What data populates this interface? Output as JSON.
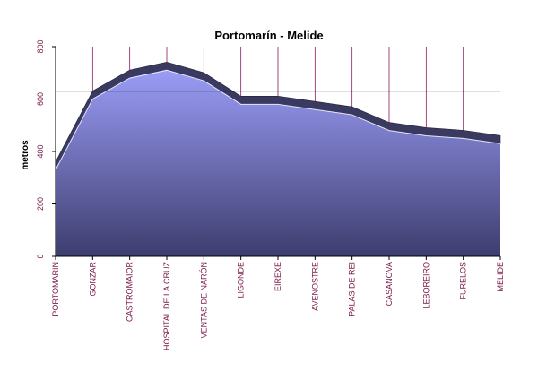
{
  "chart_data": {
    "type": "area",
    "title": "Portomarín - Melide",
    "xlabel": "",
    "ylabel": "metros",
    "ylim": [
      0,
      800
    ],
    "yticks": [
      "0",
      "200",
      "400",
      "600",
      "800"
    ],
    "categories": [
      "PORTOMARIN",
      "GONZAR",
      "CASTROMAIOR",
      "HOSPITAL DE LA CRUZ",
      "VENTAS DE NARÓN",
      "LIGONDE",
      "EIREXE",
      "AVENOSTRE",
      "PALAS DE REI",
      "CASANOVA",
      "LEBOREIRO",
      "FURELOS",
      "MELIDE"
    ],
    "values": [
      330,
      600,
      680,
      710,
      670,
      580,
      580,
      560,
      540,
      480,
      460,
      450,
      430
    ],
    "reference_line": 630,
    "grid": false,
    "legend": "none",
    "colors": {
      "fill_top": "#9a9cf6",
      "fill_bottom": "#3e3d6e",
      "edge": "#2a2a4a",
      "tick_text": "#7a1a4a",
      "vline": "#8a1a5a"
    }
  }
}
